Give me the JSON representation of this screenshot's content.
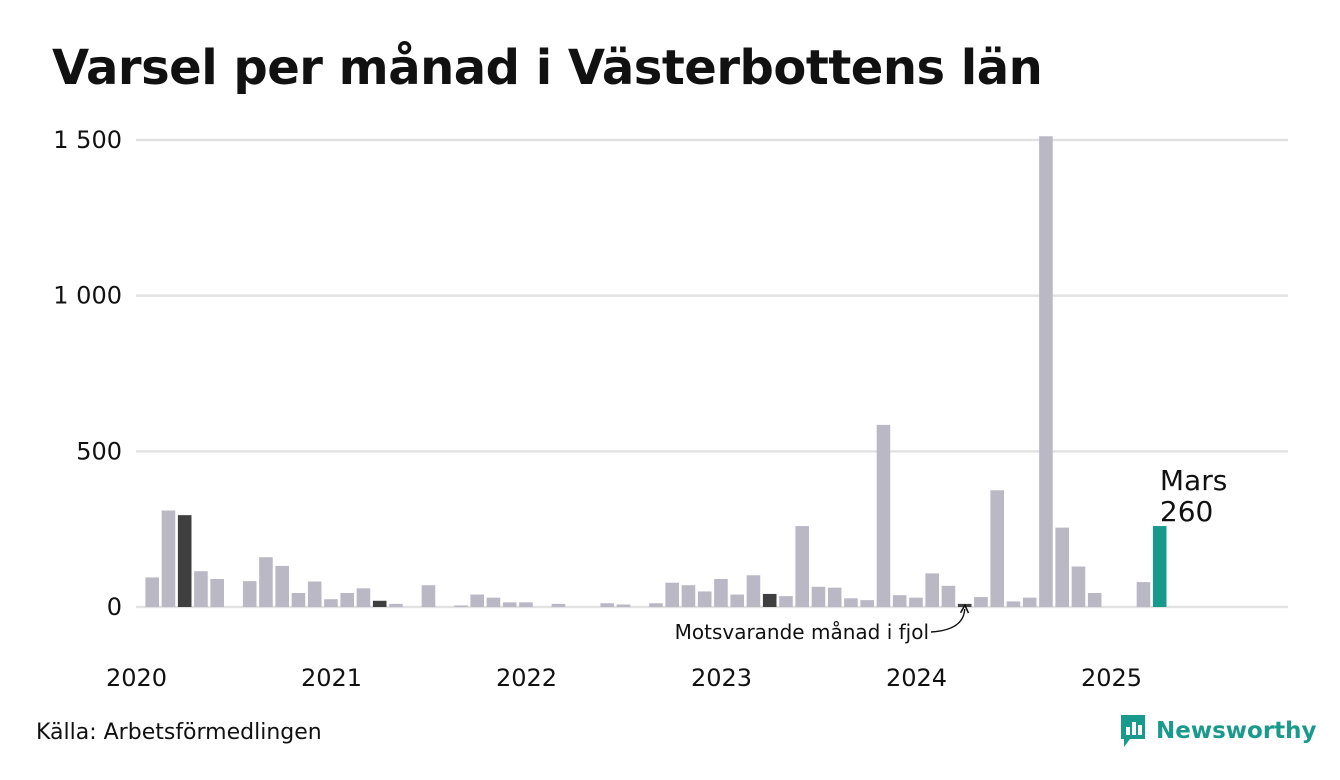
{
  "title": "Varsel per månad i Västerbottens län",
  "source": "Källa: Arbetsförmedlingen",
  "brand": {
    "name": "Newsworthy",
    "icon": "newsworthy-logo-icon"
  },
  "colors": {
    "regular": "#bbb8c6",
    "same_month_prev_years": "#3f3f3f",
    "highlight": "#179a8c",
    "grid": "#e2e2e2"
  },
  "chart_data": {
    "type": "bar",
    "ylim": [
      0,
      1500
    ],
    "yticks": [
      0,
      500,
      1000,
      1500
    ],
    "ytick_labels": [
      "0",
      "500",
      "1 000",
      "1 500"
    ],
    "xtick_labels": [
      "2020",
      "2021",
      "2022",
      "2023",
      "2024",
      "2025"
    ],
    "start": "2020-01",
    "months": [
      "2020-01",
      "2020-02",
      "2020-03",
      "2020-04",
      "2020-05",
      "2020-06",
      "2020-07",
      "2020-08",
      "2020-09",
      "2020-10",
      "2020-11",
      "2020-12",
      "2021-01",
      "2021-02",
      "2021-03",
      "2021-04",
      "2021-05",
      "2021-06",
      "2021-07",
      "2021-08",
      "2021-09",
      "2021-10",
      "2021-11",
      "2021-12",
      "2022-01",
      "2022-02",
      "2022-03",
      "2022-04",
      "2022-05",
      "2022-06",
      "2022-07",
      "2022-08",
      "2022-09",
      "2022-10",
      "2022-11",
      "2022-12",
      "2023-01",
      "2023-02",
      "2023-03",
      "2023-04",
      "2023-05",
      "2023-06",
      "2023-07",
      "2023-08",
      "2023-09",
      "2023-10",
      "2023-11",
      "2023-12",
      "2024-01",
      "2024-02",
      "2024-03",
      "2024-04",
      "2024-05",
      "2024-06",
      "2024-07",
      "2024-08",
      "2024-09",
      "2024-10",
      "2024-11",
      "2024-12",
      "2025-01",
      "2025-02",
      "2025-03"
    ],
    "values": [
      95,
      310,
      295,
      115,
      90,
      0,
      83,
      160,
      132,
      45,
      82,
      25,
      45,
      60,
      20,
      10,
      0,
      70,
      0,
      5,
      40,
      30,
      15,
      15,
      0,
      10,
      0,
      0,
      12,
      8,
      0,
      12,
      78,
      70,
      50,
      90,
      40,
      102,
      42,
      35,
      260,
      65,
      62,
      28,
      22,
      585,
      38,
      30,
      108,
      68,
      10,
      32,
      375,
      18,
      30,
      1512,
      255,
      130,
      45,
      0,
      0,
      80,
      260
    ],
    "same_month_prev_years": [
      "2020-03",
      "2021-03",
      "2022-03",
      "2023-03",
      "2024-03"
    ],
    "highlight": "2025-03",
    "highlight_label": {
      "month": "Mars",
      "value": "260"
    },
    "annotation": "Motsvarande månad i fjol"
  }
}
